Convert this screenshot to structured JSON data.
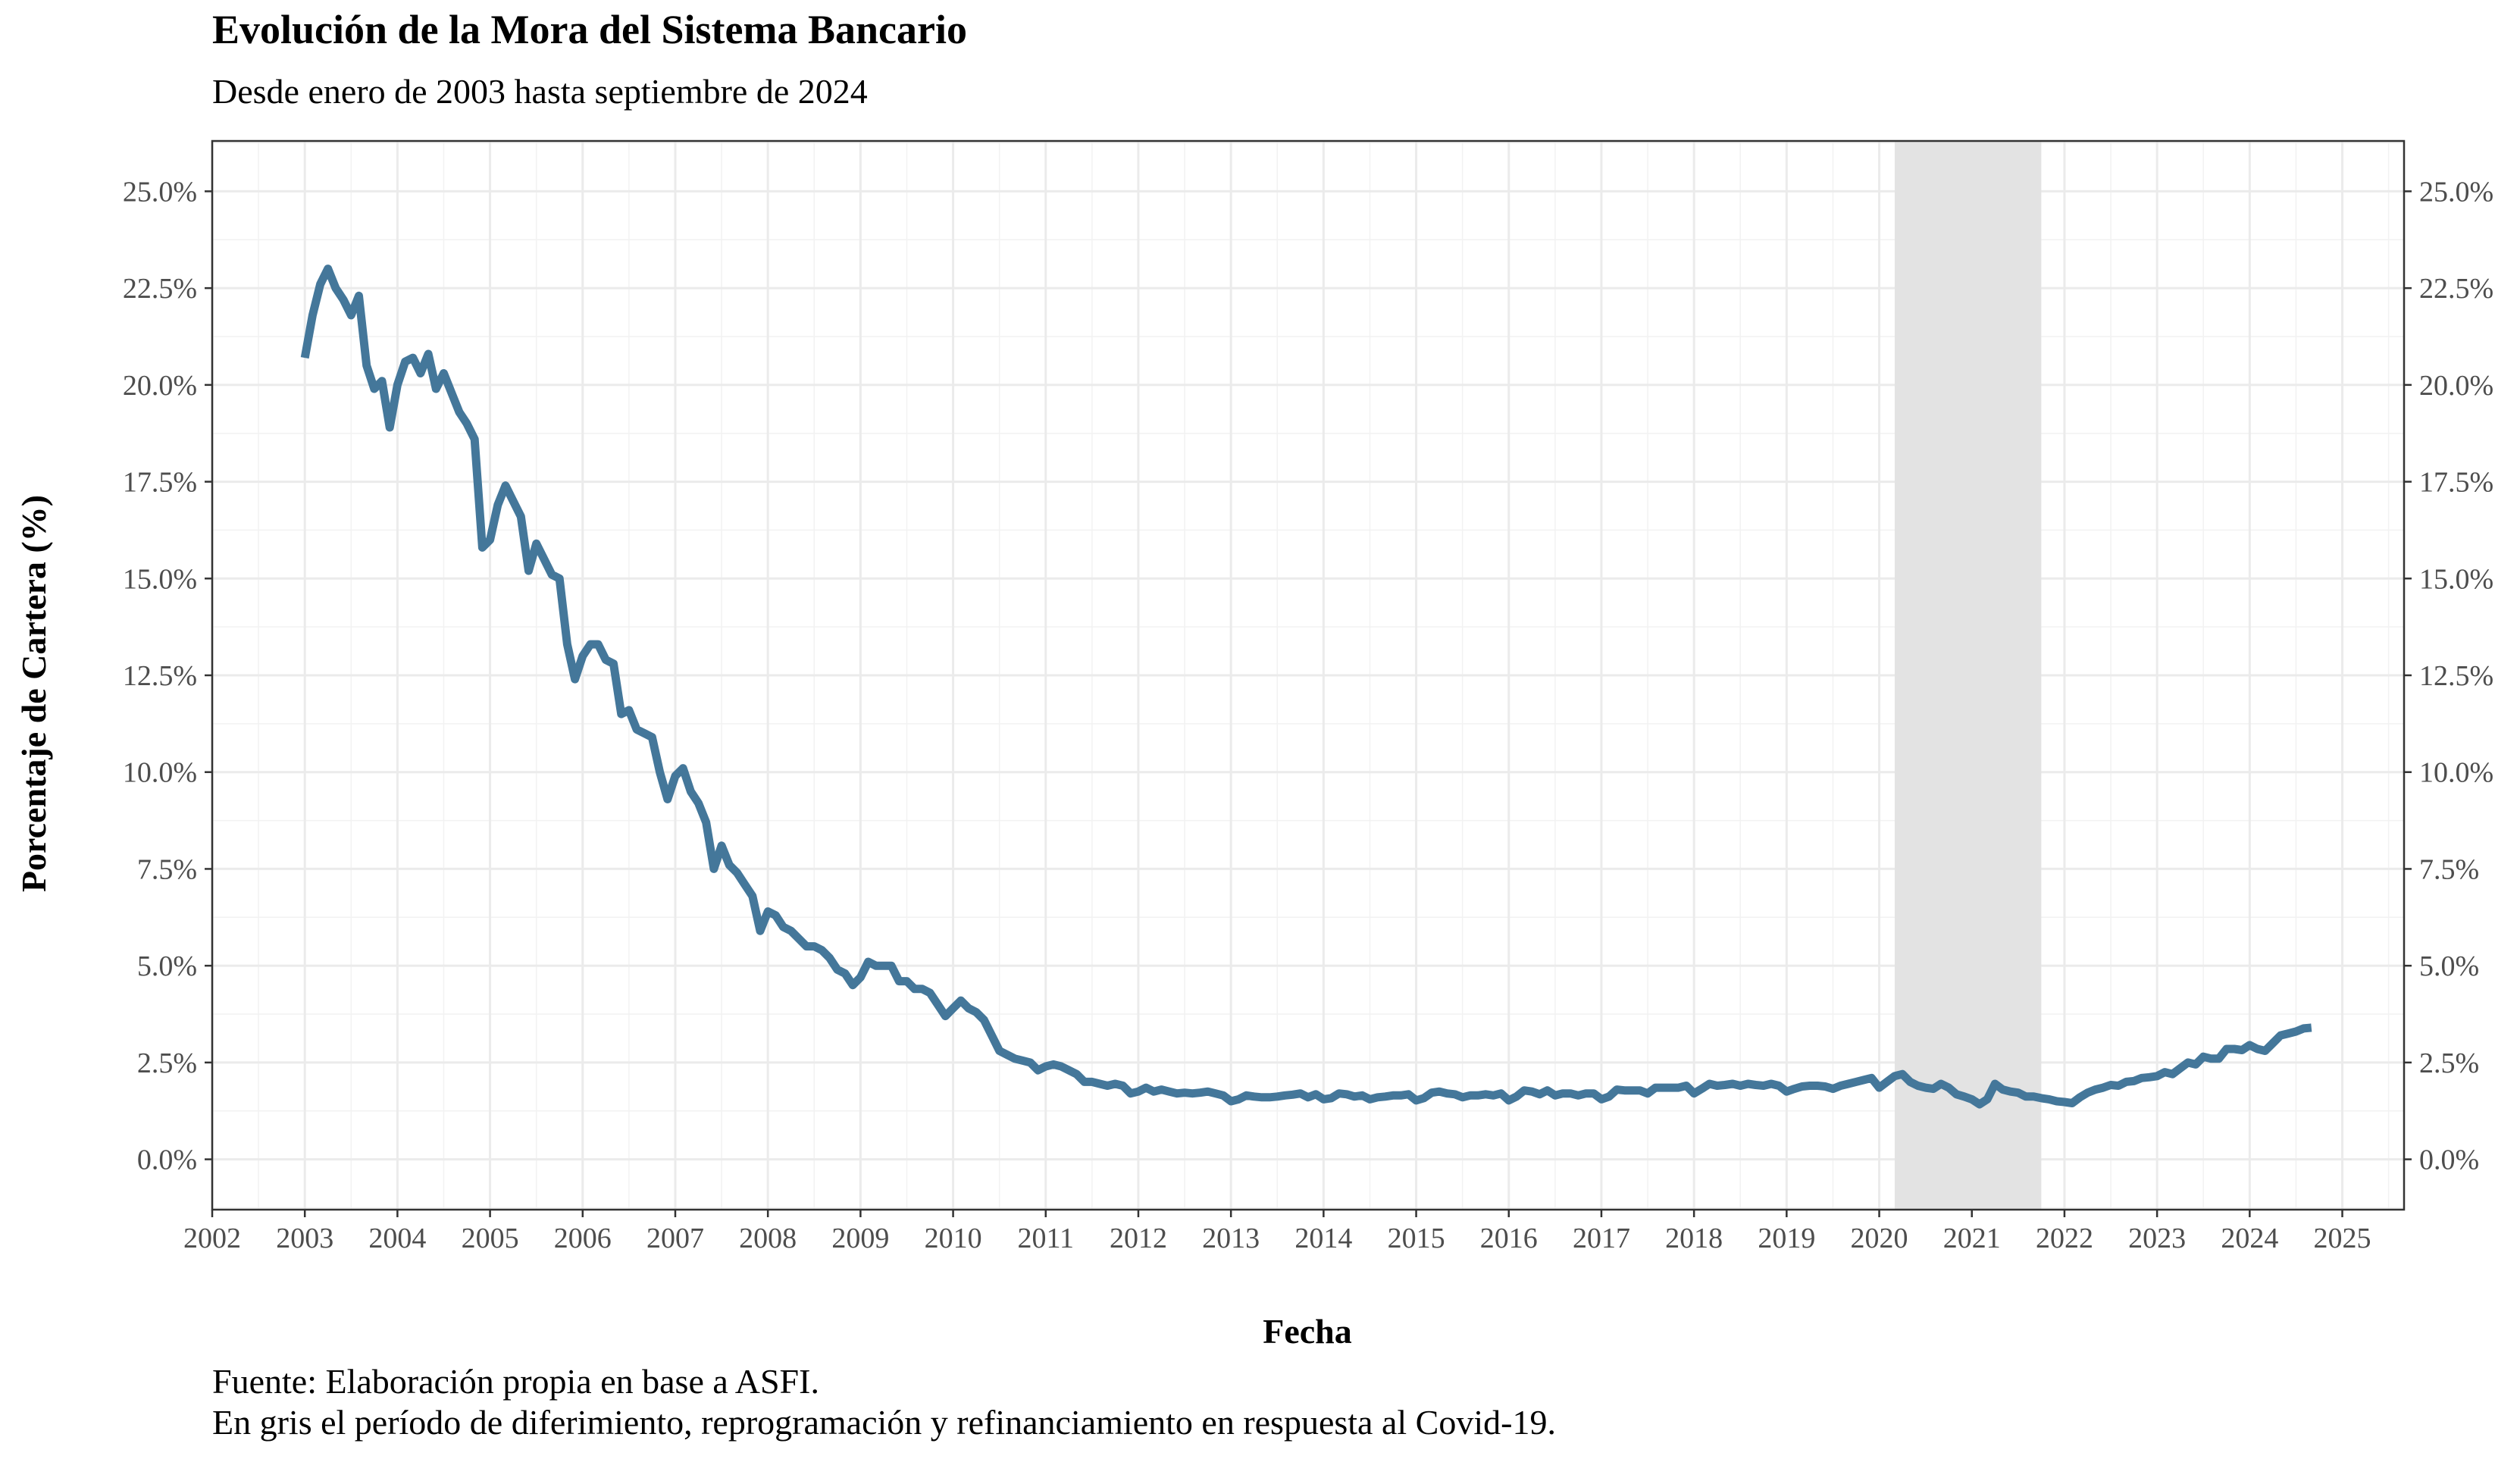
{
  "chart_data": {
    "type": "line",
    "title": "Evolución de la Mora del Sistema Bancario",
    "subtitle": "Desde enero de 2003 hasta septiembre de 2024",
    "xlabel": "Fecha",
    "ylabel": "Porcentaje de Cartera (%)",
    "x_ticks": [
      "2002",
      "2003",
      "2004",
      "2005",
      "2006",
      "2007",
      "2008",
      "2009",
      "2010",
      "2011",
      "2012",
      "2013",
      "2014",
      "2015",
      "2016",
      "2017",
      "2018",
      "2019",
      "2020",
      "2021",
      "2022",
      "2023",
      "2024",
      "2025"
    ],
    "y_ticks": [
      "0.0%",
      "2.5%",
      "5.0%",
      "7.5%",
      "10.0%",
      "12.5%",
      "15.0%",
      "17.5%",
      "20.0%",
      "22.5%",
      "25.0%"
    ],
    "y_tick_values": [
      0,
      2.5,
      5,
      7.5,
      10,
      12.5,
      15,
      17.5,
      20,
      22.5,
      25
    ],
    "xlim": [
      "2002-01-01",
      "2025-09-01"
    ],
    "ylim": [
      -1.3,
      26.3
    ],
    "y_axis_secondary": true,
    "grid": true,
    "line_color": "#44779a",
    "shaded_region": {
      "start": "2020-03",
      "end": "2021-10",
      "color": "#e3e3e3"
    },
    "captions": [
      "Fuente: Elaboración propia en base a ASFI.",
      "En gris el período de diferimiento, reprogramación y refinanciamiento en respuesta al Covid-19."
    ],
    "series": [
      {
        "points": [
          [
            "2003-01",
            20.7
          ],
          [
            "2003-02",
            21.8
          ],
          [
            "2003-03",
            22.6
          ],
          [
            "2003-04",
            23.0
          ],
          [
            "2003-05",
            22.5
          ],
          [
            "2003-06",
            22.2
          ],
          [
            "2003-07",
            21.8
          ],
          [
            "2003-08",
            22.3
          ],
          [
            "2003-09",
            20.5
          ],
          [
            "2003-10",
            19.9
          ],
          [
            "2003-11",
            20.1
          ],
          [
            "2003-12",
            18.9
          ],
          [
            "2004-01",
            20.0
          ],
          [
            "2004-02",
            20.6
          ],
          [
            "2004-03",
            20.7
          ],
          [
            "2004-04",
            20.3
          ],
          [
            "2004-05",
            20.8
          ],
          [
            "2004-06",
            19.9
          ],
          [
            "2004-07",
            20.3
          ],
          [
            "2004-08",
            19.8
          ],
          [
            "2004-09",
            19.3
          ],
          [
            "2004-10",
            19.0
          ],
          [
            "2004-11",
            18.6
          ],
          [
            "2004-12",
            15.8
          ],
          [
            "2005-01",
            16.0
          ],
          [
            "2005-02",
            16.9
          ],
          [
            "2005-03",
            17.4
          ],
          [
            "2005-04",
            17.0
          ],
          [
            "2005-05",
            16.6
          ],
          [
            "2005-06",
            15.2
          ],
          [
            "2005-07",
            15.9
          ],
          [
            "2005-08",
            15.5
          ],
          [
            "2005-09",
            15.1
          ],
          [
            "2005-10",
            15.0
          ],
          [
            "2005-11",
            13.3
          ],
          [
            "2005-12",
            12.4
          ],
          [
            "2006-01",
            13.0
          ],
          [
            "2006-02",
            13.3
          ],
          [
            "2006-03",
            13.3
          ],
          [
            "2006-04",
            12.9
          ],
          [
            "2006-05",
            12.8
          ],
          [
            "2006-06",
            11.5
          ],
          [
            "2006-07",
            11.6
          ],
          [
            "2006-08",
            11.1
          ],
          [
            "2006-09",
            11.0
          ],
          [
            "2006-10",
            10.9
          ],
          [
            "2006-11",
            10.0
          ],
          [
            "2006-12",
            9.3
          ],
          [
            "2007-01",
            9.9
          ],
          [
            "2007-02",
            10.1
          ],
          [
            "2007-03",
            9.5
          ],
          [
            "2007-04",
            9.2
          ],
          [
            "2007-05",
            8.7
          ],
          [
            "2007-06",
            7.5
          ],
          [
            "2007-07",
            8.1
          ],
          [
            "2007-08",
            7.6
          ],
          [
            "2007-09",
            7.4
          ],
          [
            "2007-10",
            7.1
          ],
          [
            "2007-11",
            6.8
          ],
          [
            "2007-12",
            5.9
          ],
          [
            "2008-01",
            6.4
          ],
          [
            "2008-02",
            6.3
          ],
          [
            "2008-03",
            6.0
          ],
          [
            "2008-04",
            5.9
          ],
          [
            "2008-05",
            5.7
          ],
          [
            "2008-06",
            5.5
          ],
          [
            "2008-07",
            5.5
          ],
          [
            "2008-08",
            5.4
          ],
          [
            "2008-09",
            5.2
          ],
          [
            "2008-10",
            4.9
          ],
          [
            "2008-11",
            4.8
          ],
          [
            "2008-12",
            4.5
          ],
          [
            "2009-01",
            4.7
          ],
          [
            "2009-02",
            5.1
          ],
          [
            "2009-03",
            5.0
          ],
          [
            "2009-04",
            5.0
          ],
          [
            "2009-05",
            5.0
          ],
          [
            "2009-06",
            4.6
          ],
          [
            "2009-07",
            4.6
          ],
          [
            "2009-08",
            4.4
          ],
          [
            "2009-09",
            4.4
          ],
          [
            "2009-10",
            4.3
          ],
          [
            "2009-11",
            4.0
          ],
          [
            "2009-12",
            3.7
          ],
          [
            "2010-01",
            3.9
          ],
          [
            "2010-02",
            4.1
          ],
          [
            "2010-03",
            3.9
          ],
          [
            "2010-04",
            3.8
          ],
          [
            "2010-05",
            3.6
          ],
          [
            "2010-06",
            3.2
          ],
          [
            "2010-07",
            2.8
          ],
          [
            "2010-08",
            2.7
          ],
          [
            "2010-09",
            2.6
          ],
          [
            "2010-10",
            2.55
          ],
          [
            "2010-11",
            2.5
          ],
          [
            "2010-12",
            2.3
          ],
          [
            "2011-01",
            2.4
          ],
          [
            "2011-02",
            2.45
          ],
          [
            "2011-03",
            2.4
          ],
          [
            "2011-04",
            2.3
          ],
          [
            "2011-05",
            2.2
          ],
          [
            "2011-06",
            2.0
          ],
          [
            "2011-07",
            2.0
          ],
          [
            "2011-08",
            1.95
          ],
          [
            "2011-09",
            1.9
          ],
          [
            "2011-10",
            1.95
          ],
          [
            "2011-11",
            1.9
          ],
          [
            "2011-12",
            1.7
          ],
          [
            "2012-01",
            1.75
          ],
          [
            "2012-02",
            1.85
          ],
          [
            "2012-03",
            1.75
          ],
          [
            "2012-04",
            1.8
          ],
          [
            "2012-05",
            1.75
          ],
          [
            "2012-06",
            1.7
          ],
          [
            "2012-07",
            1.72
          ],
          [
            "2012-08",
            1.7
          ],
          [
            "2012-09",
            1.72
          ],
          [
            "2012-10",
            1.75
          ],
          [
            "2012-11",
            1.7
          ],
          [
            "2012-12",
            1.65
          ],
          [
            "2013-01",
            1.5
          ],
          [
            "2013-02",
            1.55
          ],
          [
            "2013-03",
            1.65
          ],
          [
            "2013-04",
            1.62
          ],
          [
            "2013-05",
            1.6
          ],
          [
            "2013-06",
            1.6
          ],
          [
            "2013-07",
            1.62
          ],
          [
            "2013-08",
            1.65
          ],
          [
            "2013-09",
            1.67
          ],
          [
            "2013-10",
            1.7
          ],
          [
            "2013-11",
            1.6
          ],
          [
            "2013-12",
            1.68
          ],
          [
            "2014-01",
            1.55
          ],
          [
            "2014-02",
            1.58
          ],
          [
            "2014-03",
            1.7
          ],
          [
            "2014-04",
            1.68
          ],
          [
            "2014-05",
            1.62
          ],
          [
            "2014-06",
            1.65
          ],
          [
            "2014-07",
            1.55
          ],
          [
            "2014-08",
            1.6
          ],
          [
            "2014-09",
            1.62
          ],
          [
            "2014-10",
            1.65
          ],
          [
            "2014-11",
            1.65
          ],
          [
            "2014-12",
            1.68
          ],
          [
            "2015-01",
            1.52
          ],
          [
            "2015-02",
            1.58
          ],
          [
            "2015-03",
            1.72
          ],
          [
            "2015-04",
            1.75
          ],
          [
            "2015-05",
            1.7
          ],
          [
            "2015-06",
            1.68
          ],
          [
            "2015-07",
            1.6
          ],
          [
            "2015-08",
            1.65
          ],
          [
            "2015-09",
            1.65
          ],
          [
            "2015-10",
            1.68
          ],
          [
            "2015-11",
            1.65
          ],
          [
            "2015-12",
            1.7
          ],
          [
            "2016-01",
            1.52
          ],
          [
            "2016-02",
            1.62
          ],
          [
            "2016-03",
            1.78
          ],
          [
            "2016-04",
            1.75
          ],
          [
            "2016-05",
            1.68
          ],
          [
            "2016-06",
            1.78
          ],
          [
            "2016-07",
            1.65
          ],
          [
            "2016-08",
            1.7
          ],
          [
            "2016-09",
            1.7
          ],
          [
            "2016-10",
            1.65
          ],
          [
            "2016-11",
            1.7
          ],
          [
            "2016-12",
            1.7
          ],
          [
            "2017-01",
            1.55
          ],
          [
            "2017-02",
            1.62
          ],
          [
            "2017-03",
            1.8
          ],
          [
            "2017-04",
            1.78
          ],
          [
            "2017-05",
            1.78
          ],
          [
            "2017-06",
            1.78
          ],
          [
            "2017-07",
            1.7
          ],
          [
            "2017-08",
            1.85
          ],
          [
            "2017-09",
            1.85
          ],
          [
            "2017-10",
            1.85
          ],
          [
            "2017-11",
            1.85
          ],
          [
            "2017-12",
            1.9
          ],
          [
            "2018-01",
            1.7
          ],
          [
            "2018-02",
            1.82
          ],
          [
            "2018-03",
            1.95
          ],
          [
            "2018-04",
            1.9
          ],
          [
            "2018-05",
            1.92
          ],
          [
            "2018-06",
            1.95
          ],
          [
            "2018-07",
            1.9
          ],
          [
            "2018-08",
            1.95
          ],
          [
            "2018-09",
            1.92
          ],
          [
            "2018-10",
            1.9
          ],
          [
            "2018-11",
            1.95
          ],
          [
            "2018-12",
            1.9
          ],
          [
            "2019-01",
            1.75
          ],
          [
            "2019-02",
            1.82
          ],
          [
            "2019-03",
            1.88
          ],
          [
            "2019-04",
            1.9
          ],
          [
            "2019-05",
            1.9
          ],
          [
            "2019-06",
            1.88
          ],
          [
            "2019-07",
            1.82
          ],
          [
            "2019-08",
            1.9
          ],
          [
            "2019-09",
            1.95
          ],
          [
            "2019-10",
            2.0
          ],
          [
            "2019-11",
            2.05
          ],
          [
            "2019-12",
            2.1
          ],
          [
            "2020-01",
            1.85
          ],
          [
            "2020-02",
            2.0
          ],
          [
            "2020-03",
            2.15
          ],
          [
            "2020-04",
            2.2
          ],
          [
            "2020-05",
            2.0
          ],
          [
            "2020-06",
            1.9
          ],
          [
            "2020-07",
            1.85
          ],
          [
            "2020-08",
            1.82
          ],
          [
            "2020-09",
            1.95
          ],
          [
            "2020-10",
            1.85
          ],
          [
            "2020-11",
            1.68
          ],
          [
            "2020-12",
            1.62
          ],
          [
            "2021-01",
            1.55
          ],
          [
            "2021-02",
            1.42
          ],
          [
            "2021-03",
            1.55
          ],
          [
            "2021-04",
            1.95
          ],
          [
            "2021-05",
            1.8
          ],
          [
            "2021-06",
            1.75
          ],
          [
            "2021-07",
            1.72
          ],
          [
            "2021-08",
            1.62
          ],
          [
            "2021-09",
            1.62
          ],
          [
            "2021-10",
            1.58
          ],
          [
            "2021-11",
            1.55
          ],
          [
            "2021-12",
            1.5
          ],
          [
            "2022-01",
            1.48
          ],
          [
            "2022-02",
            1.45
          ],
          [
            "2022-03",
            1.6
          ],
          [
            "2022-04",
            1.72
          ],
          [
            "2022-05",
            1.8
          ],
          [
            "2022-06",
            1.85
          ],
          [
            "2022-07",
            1.92
          ],
          [
            "2022-08",
            1.9
          ],
          [
            "2022-09",
            2.0
          ],
          [
            "2022-10",
            2.02
          ],
          [
            "2022-11",
            2.1
          ],
          [
            "2022-12",
            2.12
          ],
          [
            "2023-01",
            2.15
          ],
          [
            "2023-02",
            2.25
          ],
          [
            "2023-03",
            2.2
          ],
          [
            "2023-04",
            2.35
          ],
          [
            "2023-05",
            2.5
          ],
          [
            "2023-06",
            2.45
          ],
          [
            "2023-07",
            2.65
          ],
          [
            "2023-08",
            2.6
          ],
          [
            "2023-09",
            2.6
          ],
          [
            "2023-10",
            2.85
          ],
          [
            "2023-11",
            2.85
          ],
          [
            "2023-12",
            2.82
          ],
          [
            "2024-01",
            2.95
          ],
          [
            "2024-02",
            2.85
          ],
          [
            "2024-03",
            2.8
          ],
          [
            "2024-04",
            3.0
          ],
          [
            "2024-05",
            3.2
          ],
          [
            "2024-06",
            3.25
          ],
          [
            "2024-07",
            3.3
          ],
          [
            "2024-08",
            3.38
          ],
          [
            "2024-09",
            3.4
          ]
        ]
      }
    ]
  }
}
